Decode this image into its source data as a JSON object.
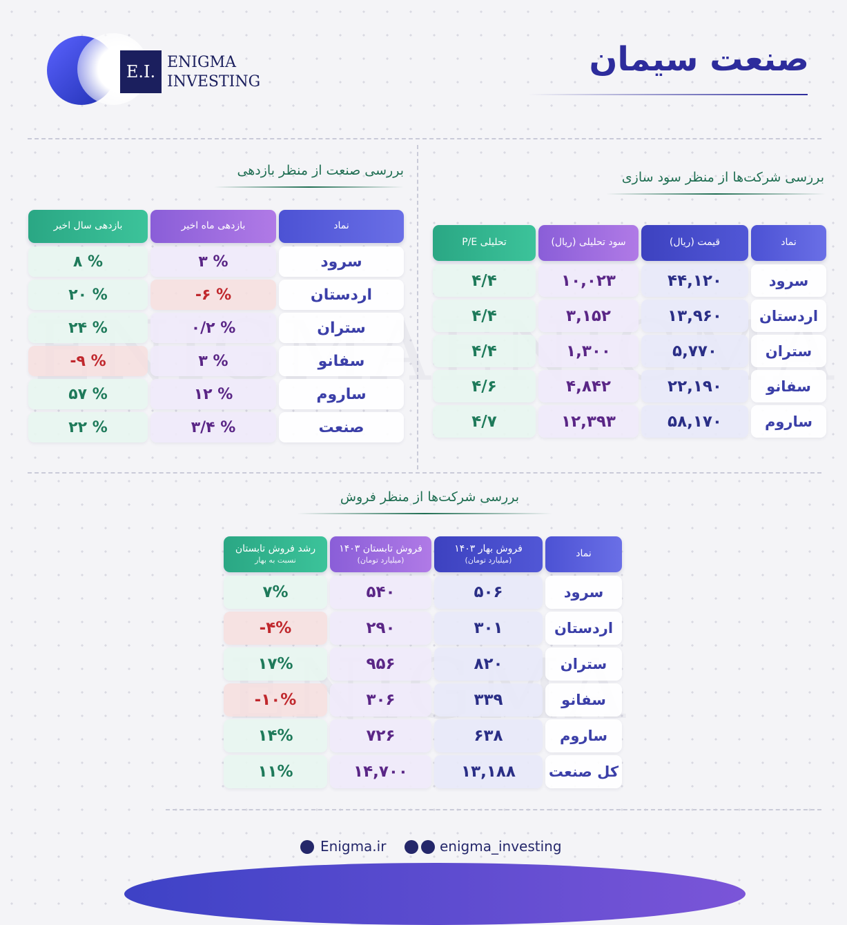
{
  "header": {
    "logo_mark": "E.I.",
    "brand_line1": "ENIGMA",
    "brand_line2": "INVESTING",
    "title": "صنعت سیمان"
  },
  "watermark": "ENIGMA",
  "profit_table": {
    "title": "بررسی شرکت‌ها از منظر سود سازی",
    "headers": [
      "نماد",
      "قیمت (ریال)",
      "سود تحلیلی (ریال)",
      "P/E تحلیلی"
    ],
    "rows": [
      [
        "سرود",
        "۴۴,۱۲۰",
        "۱۰,۰۲۳",
        "۴/۴"
      ],
      [
        "اردستان",
        "۱۳,۹۶۰",
        "۳,۱۵۲",
        "۴/۴"
      ],
      [
        "ستران",
        "۵,۷۷۰",
        "۱,۳۰۰",
        "۴/۴"
      ],
      [
        "سفانو",
        "۲۲,۱۹۰",
        "۴,۸۴۲",
        "۴/۶"
      ],
      [
        "ساروم",
        "۵۸,۱۷۰",
        "۱۲,۳۹۳",
        "۴/۷"
      ]
    ]
  },
  "returns_table": {
    "title": "بررسی صنعت از منظر بازدهی",
    "headers": [
      "نماد",
      "بازدهی ماه اخیر",
      "بازدهی سال اخیر"
    ],
    "rows": [
      [
        "سرود",
        "۳ %",
        "۸ %"
      ],
      [
        "اردستان",
        "-۶ %",
        "۲۰ %"
      ],
      [
        "ستران",
        "۰/۲ %",
        "۲۴ %"
      ],
      [
        "سفانو",
        "۳ %",
        "-۹ %"
      ],
      [
        "ساروم",
        "۱۲ %",
        "۵۷ %"
      ],
      [
        "صنعت",
        "۳/۴ %",
        "۲۲ %"
      ]
    ]
  },
  "sales_table": {
    "title": "بررسی شرکت‌ها از منظر فروش",
    "headers": [
      [
        "نماد"
      ],
      [
        "فروش بهار ۱۴۰۳",
        "(میلیارد تومان)"
      ],
      [
        "فروش تابستان ۱۴۰۳",
        "(میلیارد تومان)"
      ],
      [
        "رشد فروش تابستان",
        "نسبت به بهار"
      ]
    ],
    "rows": [
      [
        "سرود",
        "۵۰۶",
        "۵۴۰",
        "۷%"
      ],
      [
        "اردستان",
        "۳۰۱",
        "۲۹۰",
        "-۴%"
      ],
      [
        "ستران",
        "۸۲۰",
        "۹۵۶",
        "۱۷%"
      ],
      [
        "سفانو",
        "۳۳۹",
        "۳۰۶",
        "-۱۰%"
      ],
      [
        "ساروم",
        "۶۳۸",
        "۷۲۶",
        "۱۴%"
      ],
      [
        "کل صنعت",
        "۱۳,۱۸۸",
        "۱۴,۷۰۰",
        "۱۱%"
      ]
    ]
  },
  "footer": {
    "website": "Enigma.ir",
    "social": "enigma_investing"
  }
}
